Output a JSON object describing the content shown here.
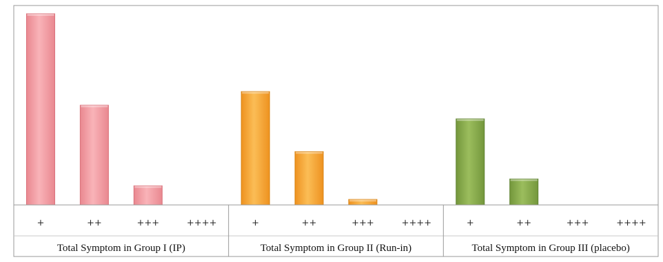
{
  "chart_data": {
    "type": "bar",
    "grid": false,
    "legend": "none",
    "ylim": [
      0,
      14
    ],
    "groups": [
      {
        "name": "Total Symptom in Group I (IP)",
        "categories": [
          "+",
          "++",
          "+++",
          "++++"
        ],
        "values": [
          14,
          7.3,
          1.4,
          0
        ],
        "color": "#f4a0a6",
        "edge": "#d9707a"
      },
      {
        "name": "Total Symptom in Group II (Run-in)",
        "categories": [
          "+",
          "++",
          "+++",
          "++++"
        ],
        "values": [
          8.3,
          3.9,
          0.4,
          0
        ],
        "color": "#f7a937",
        "edge": "#d88414"
      },
      {
        "name": "Total Symptom in Group III (placebo)",
        "categories": [
          "+",
          "++",
          "+++",
          "++++"
        ],
        "values": [
          6.3,
          1.9,
          0,
          0
        ],
        "color": "#8aac4e",
        "edge": "#5f8332"
      }
    ]
  }
}
